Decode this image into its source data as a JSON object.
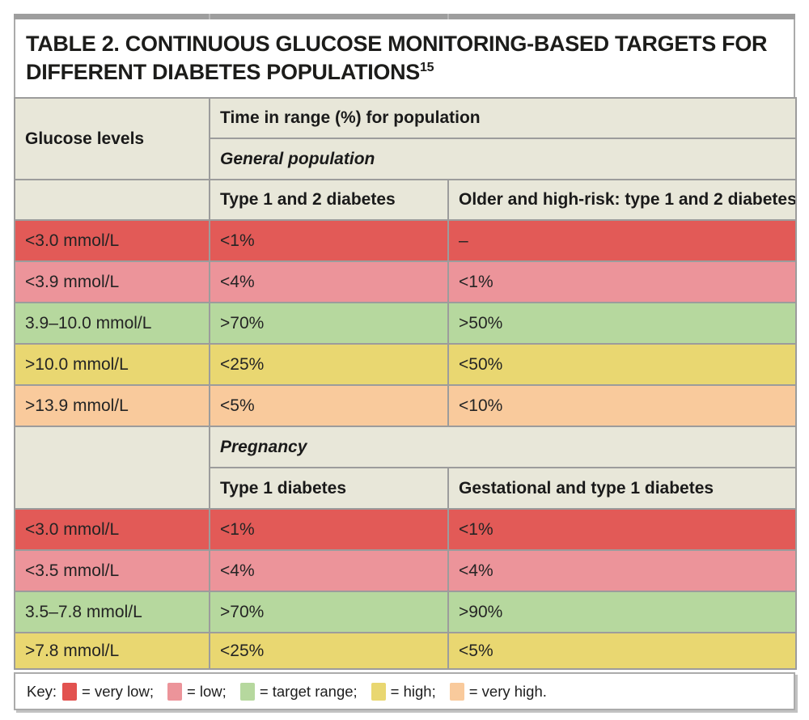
{
  "title": {
    "label": "TABLE 2.",
    "text": " CONTINUOUS GLUCOSE MONITORING-BASED TARGETS FOR DIFFERENT DIABETES POPULATIONS",
    "superscript": "15"
  },
  "table": {
    "glucose_header": "Glucose levels",
    "time_in_range_header": "Time in range (%) for population",
    "sections": [
      {
        "name": "General population",
        "col_headers": [
          "Type 1 and 2 diabetes",
          "Older and high-risk: type 1 and 2 diabetes"
        ],
        "rows": [
          {
            "glucose": "<3.0 mmol/L",
            "value1": "<1%",
            "value2": "–",
            "level": "very low"
          },
          {
            "glucose": "<3.9 mmol/L",
            "value1": "<4%",
            "value2": "<1%",
            "level": "low"
          },
          {
            "glucose": "3.9–10.0 mmol/L",
            "value1": ">70%",
            "value2": ">50%",
            "level": "target range"
          },
          {
            "glucose": ">10.0 mmol/L",
            "value1": "<25%",
            "value2": "<50%",
            "level": "high"
          },
          {
            "glucose": ">13.9 mmol/L",
            "value1": "<5%",
            "value2": "<10%",
            "level": "very high"
          }
        ]
      },
      {
        "name": "Pregnancy",
        "col_headers": [
          "Type 1 diabetes",
          "Gestational and type 1 diabetes"
        ],
        "rows": [
          {
            "glucose": "<3.0 mmol/L",
            "value1": "<1%",
            "value2": "<1%",
            "level": "very low"
          },
          {
            "glucose": "<3.5 mmol/L",
            "value1": "<4%",
            "value2": "<4%",
            "level": "low"
          },
          {
            "glucose": "3.5–7.8 mmol/L",
            "value1": ">70%",
            "value2": ">90%",
            "level": "target range"
          },
          {
            "glucose": ">7.8 mmol/L",
            "value1": "<25%",
            "value2": "<5%",
            "level": "high"
          }
        ]
      }
    ]
  },
  "key": {
    "label": "Key:",
    "items": [
      {
        "level": "very low",
        "text": "= very low;"
      },
      {
        "level": "low",
        "text": "= low;"
      },
      {
        "level": "target range",
        "text": "= target range;"
      },
      {
        "level": "high",
        "text": "= high;"
      },
      {
        "level": "very high",
        "text": "= very high."
      }
    ]
  },
  "colors": {
    "very_low": "#e25a57",
    "low": "#ec949a",
    "target_range": "#b6d89e",
    "high": "#e9d771",
    "very_high": "#f9ca9c",
    "header_bg": "#e8e7d9",
    "grid_border": "#9c9c9c",
    "top_bar": "#9e9e9e"
  },
  "chart_data": {
    "type": "table",
    "title": "TABLE 2. CONTINUOUS GLUCOSE MONITORING-BASED TARGETS FOR DIFFERENT DIABETES POPULATIONS (ref 15)",
    "columns": [
      "Glucose levels",
      "Time in range (%) for population"
    ],
    "sections": [
      {
        "population": "General population",
        "columns": [
          "Type 1 and 2 diabetes",
          "Older and high-risk: type 1 and 2 diabetes"
        ],
        "rows": [
          [
            "<3.0 mmol/L",
            "<1%",
            "–"
          ],
          [
            "<3.9 mmol/L",
            "<4%",
            "<1%"
          ],
          [
            "3.9–10.0 mmol/L",
            ">70%",
            ">50%"
          ],
          [
            ">10.0 mmol/L",
            "<25%",
            "<50%"
          ],
          [
            ">13.9 mmol/L",
            "<5%",
            "<10%"
          ]
        ]
      },
      {
        "population": "Pregnancy",
        "columns": [
          "Type 1 diabetes",
          "Gestational and type 1 diabetes"
        ],
        "rows": [
          [
            "<3.0 mmol/L",
            "<1%",
            "<1%"
          ],
          [
            "<3.5 mmol/L",
            "<4%",
            "<4%"
          ],
          [
            "3.5–7.8 mmol/L",
            ">70%",
            ">90%"
          ],
          [
            ">7.8 mmol/L",
            "<25%",
            "<5%"
          ]
        ]
      }
    ],
    "row_color_key": [
      "very low = red",
      "low = pink",
      "target range = green",
      "high = yellow",
      "very high = orange"
    ]
  }
}
